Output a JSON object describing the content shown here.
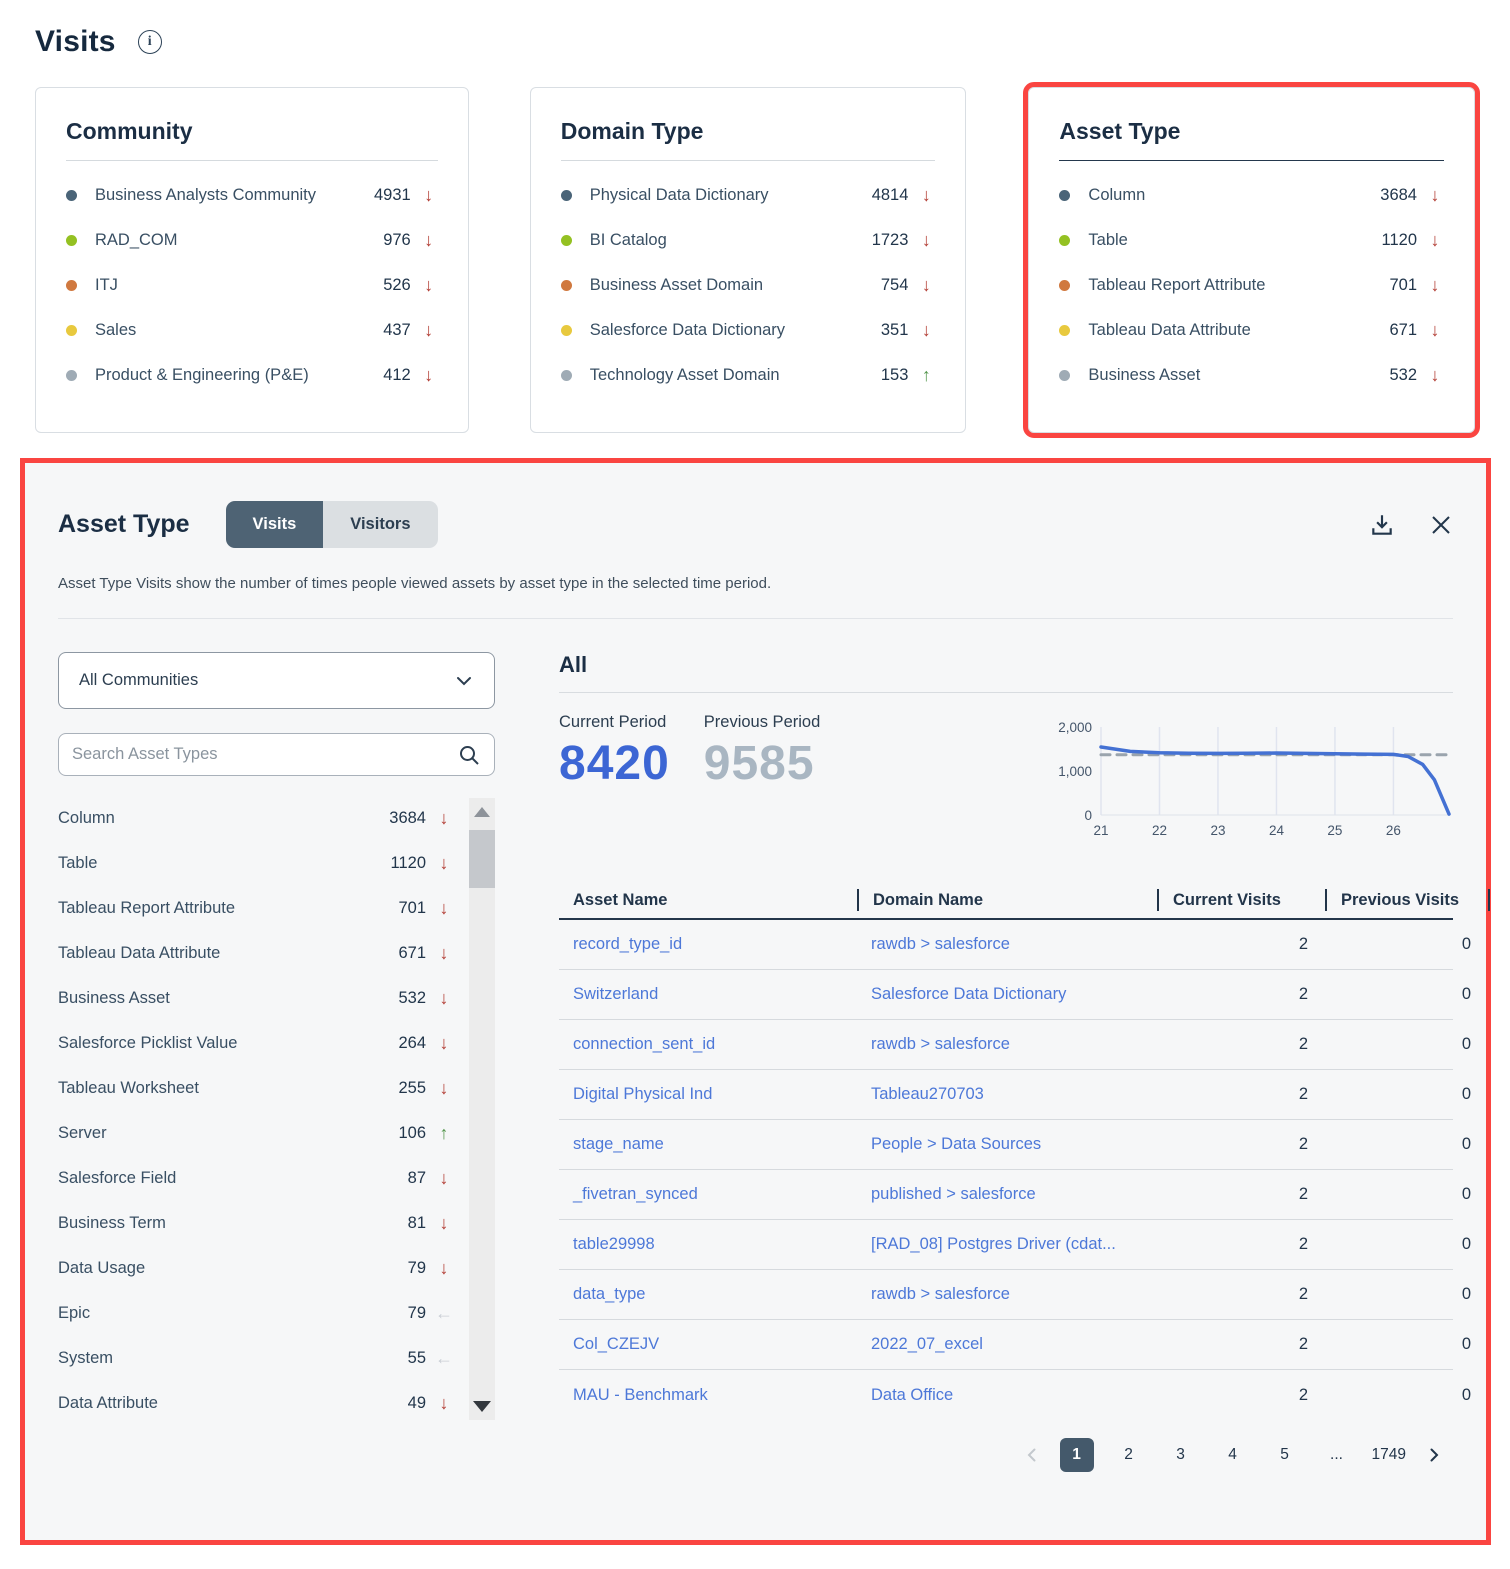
{
  "colors": {
    "annotation_red": "#fa4541",
    "link_blue": "#4d78d8",
    "current_period_blue": "#3c66d4",
    "previous_period_gray": "#a9b6c2",
    "trend_down_red": "#b23c33",
    "trend_up_green": "#55974e",
    "trend_flat_gray": "#c9ced5",
    "tab_active_bg": "#4e6374",
    "dot_palette": [
      "#4a6478",
      "#94c122",
      "#d0793f",
      "#e8c93e",
      "#9fabb5"
    ]
  },
  "icons": {
    "trend": {
      "down": "↓",
      "up": "↑",
      "flat": "←"
    }
  },
  "page": {
    "title": "Visits"
  },
  "cards": [
    {
      "title": "Community",
      "items": [
        {
          "label": "Business Analysts Community",
          "value": 4931,
          "trend": "down",
          "dot": "#4a6478"
        },
        {
          "label": "RAD_COM",
          "value": 976,
          "trend": "down",
          "dot": "#94c122"
        },
        {
          "label": "ITJ",
          "value": 526,
          "trend": "down",
          "dot": "#d0793f"
        },
        {
          "label": "Sales",
          "value": 437,
          "trend": "down",
          "dot": "#e8c93e"
        },
        {
          "label": "Product & Engineering (P&E)",
          "value": 412,
          "trend": "down",
          "dot": "#9fabb5"
        }
      ]
    },
    {
      "title": "Domain Type",
      "items": [
        {
          "label": "Physical Data Dictionary",
          "value": 4814,
          "trend": "down",
          "dot": "#4a6478"
        },
        {
          "label": "BI Catalog",
          "value": 1723,
          "trend": "down",
          "dot": "#94c122"
        },
        {
          "label": "Business Asset Domain",
          "value": 754,
          "trend": "down",
          "dot": "#d0793f"
        },
        {
          "label": "Salesforce Data Dictionary",
          "value": 351,
          "trend": "down",
          "dot": "#e8c93e"
        },
        {
          "label": "Technology Asset Domain",
          "value": 153,
          "trend": "up",
          "dot": "#9fabb5"
        }
      ]
    },
    {
      "title": "Asset Type",
      "highlighted": true,
      "items": [
        {
          "label": "Column",
          "value": 3684,
          "trend": "down",
          "dot": "#4a6478"
        },
        {
          "label": "Table",
          "value": 1120,
          "trend": "down",
          "dot": "#94c122"
        },
        {
          "label": "Tableau Report Attribute",
          "value": 701,
          "trend": "down",
          "dot": "#d0793f"
        },
        {
          "label": "Tableau Data Attribute",
          "value": 671,
          "trend": "down",
          "dot": "#e8c93e"
        },
        {
          "label": "Business Asset",
          "value": 532,
          "trend": "down",
          "dot": "#9fabb5"
        }
      ]
    }
  ],
  "panel": {
    "title": "Asset Type",
    "tabs": [
      {
        "label": "Visits",
        "active": true
      },
      {
        "label": "Visitors",
        "active": false
      }
    ],
    "description": "Asset Type Visits show the number of times people viewed assets by asset type in the selected time period.",
    "filters": {
      "community_select": "All Communities",
      "search_placeholder": "Search Asset Types"
    },
    "asset_type_list": [
      {
        "label": "Column",
        "value": 3684,
        "trend": "down"
      },
      {
        "label": "Table",
        "value": 1120,
        "trend": "down"
      },
      {
        "label": "Tableau Report Attribute",
        "value": 701,
        "trend": "down"
      },
      {
        "label": "Tableau Data Attribute",
        "value": 671,
        "trend": "down"
      },
      {
        "label": "Business Asset",
        "value": 532,
        "trend": "down"
      },
      {
        "label": "Salesforce Picklist Value",
        "value": 264,
        "trend": "down"
      },
      {
        "label": "Tableau Worksheet",
        "value": 255,
        "trend": "down"
      },
      {
        "label": "Server",
        "value": 106,
        "trend": "up"
      },
      {
        "label": "Salesforce Field",
        "value": 87,
        "trend": "down"
      },
      {
        "label": "Business Term",
        "value": 81,
        "trend": "down"
      },
      {
        "label": "Data Usage",
        "value": 79,
        "trend": "down"
      },
      {
        "label": "Epic",
        "value": 79,
        "trend": "flat"
      },
      {
        "label": "System",
        "value": 55,
        "trend": "flat"
      },
      {
        "label": "Data Attribute",
        "value": 49,
        "trend": "down"
      }
    ],
    "detail": {
      "heading": "All",
      "current_period_label": "Current Period",
      "previous_period_label": "Previous Period",
      "current_period_value": 8420,
      "previous_period_value": 9585
    },
    "chart_data": {
      "type": "line",
      "xlim": [
        21,
        26.95
      ],
      "ylim": [
        0,
        2000
      ],
      "x_ticks": [
        21,
        22,
        23,
        24,
        25,
        26
      ],
      "y_ticks": [
        {
          "value": 0,
          "label": "0"
        },
        {
          "value": 1000,
          "label": "1,000"
        },
        {
          "value": 2000,
          "label": "2,000"
        }
      ],
      "series": [
        {
          "name": "Current Period",
          "style": "solid",
          "color": "#4471d3",
          "points": [
            [
              21,
              1545
            ],
            [
              21.5,
              1445
            ],
            [
              22,
              1415
            ],
            [
              22.5,
              1405
            ],
            [
              23,
              1400
            ],
            [
              23.5,
              1402
            ],
            [
              24,
              1408
            ],
            [
              24.5,
              1400
            ],
            [
              25,
              1390
            ],
            [
              25.5,
              1385
            ],
            [
              26,
              1378
            ],
            [
              26.25,
              1330
            ],
            [
              26.5,
              1150
            ],
            [
              26.7,
              800
            ],
            [
              26.95,
              20
            ]
          ]
        },
        {
          "name": "Previous Period",
          "style": "dashed",
          "color": "#9aa4ad",
          "points": [
            [
              21,
              1368
            ],
            [
              26.95,
              1368
            ]
          ]
        }
      ]
    },
    "table": {
      "columns": [
        "Asset Name",
        "Domain Name",
        "Current Visits",
        "Previous Visits"
      ],
      "rows": [
        {
          "asset": "record_type_id",
          "domain": "rawdb > salesforce",
          "current": 2,
          "previous": 0
        },
        {
          "asset": "Switzerland",
          "domain": "Salesforce Data Dictionary",
          "current": 2,
          "previous": 0
        },
        {
          "asset": "connection_sent_id",
          "domain": "rawdb > salesforce",
          "current": 2,
          "previous": 0
        },
        {
          "asset": "Digital Physical Ind",
          "domain": "Tableau270703",
          "current": 2,
          "previous": 0
        },
        {
          "asset": "stage_name",
          "domain": "People > Data Sources",
          "current": 2,
          "previous": 0
        },
        {
          "asset": "_fivetran_synced",
          "domain": "published > salesforce",
          "current": 2,
          "previous": 0
        },
        {
          "asset": "table29998",
          "domain": "[RAD_08] Postgres Driver (cdat...",
          "current": 2,
          "previous": 0
        },
        {
          "asset": "data_type",
          "domain": "rawdb > salesforce",
          "current": 2,
          "previous": 0
        },
        {
          "asset": "Col_CZEJV",
          "domain": "2022_07_excel",
          "current": 2,
          "previous": 0
        },
        {
          "asset": "MAU - Benchmark",
          "domain": "Data Office",
          "current": 2,
          "previous": 0
        }
      ]
    },
    "pagination": {
      "pages": [
        {
          "label": "1",
          "active": true
        },
        {
          "label": "2",
          "active": false
        },
        {
          "label": "3",
          "active": false
        },
        {
          "label": "4",
          "active": false
        },
        {
          "label": "5",
          "active": false
        },
        {
          "label": "...",
          "active": false,
          "ellipsis": true
        },
        {
          "label": "1749",
          "active": false
        }
      ]
    }
  }
}
